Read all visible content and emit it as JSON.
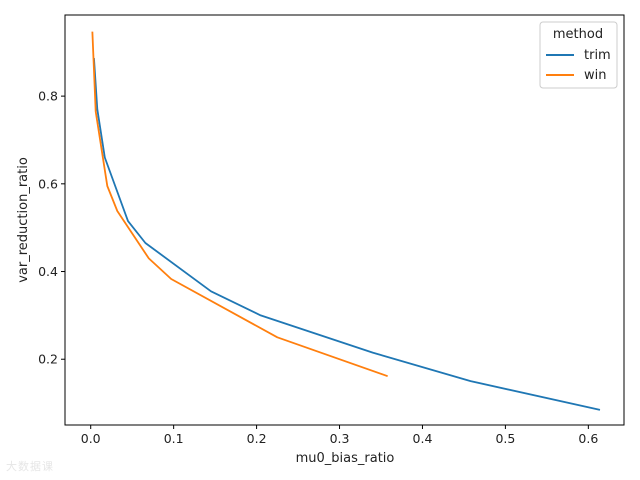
{
  "watermark": "大数据课",
  "chart_data": {
    "type": "line",
    "xlabel": "mu0_bias_ratio",
    "ylabel": "var_reduction_ratio",
    "xlim": [
      -0.031,
      0.643
    ],
    "ylim": [
      0.05,
      0.985
    ],
    "x_ticks": [
      "0.0",
      "0.1",
      "0.2",
      "0.3",
      "0.4",
      "0.5",
      "0.6"
    ],
    "x_tick_values": [
      0.0,
      0.1,
      0.2,
      0.3,
      0.4,
      0.5,
      0.6
    ],
    "y_ticks": [
      "0.2",
      "0.4",
      "0.6",
      "0.8"
    ],
    "y_tick_values": [
      0.2,
      0.4,
      0.6,
      0.8
    ],
    "grid": false,
    "legend": {
      "title": "method",
      "placement": "top-right"
    },
    "series": [
      {
        "name": "trim",
        "color": "#1f77b4",
        "points": [
          [
            0.004,
            0.885
          ],
          [
            0.008,
            0.77
          ],
          [
            0.017,
            0.66
          ],
          [
            0.045,
            0.515
          ],
          [
            0.066,
            0.465
          ],
          [
            0.145,
            0.355
          ],
          [
            0.205,
            0.3
          ],
          [
            0.34,
            0.215
          ],
          [
            0.458,
            0.15
          ],
          [
            0.613,
            0.085
          ]
        ]
      },
      {
        "name": "win",
        "color": "#ff7f0e",
        "points": [
          [
            0.002,
            0.945
          ],
          [
            0.006,
            0.765
          ],
          [
            0.02,
            0.595
          ],
          [
            0.032,
            0.538
          ],
          [
            0.07,
            0.43
          ],
          [
            0.097,
            0.383
          ],
          [
            0.225,
            0.25
          ],
          [
            0.357,
            0.162
          ]
        ]
      }
    ]
  }
}
